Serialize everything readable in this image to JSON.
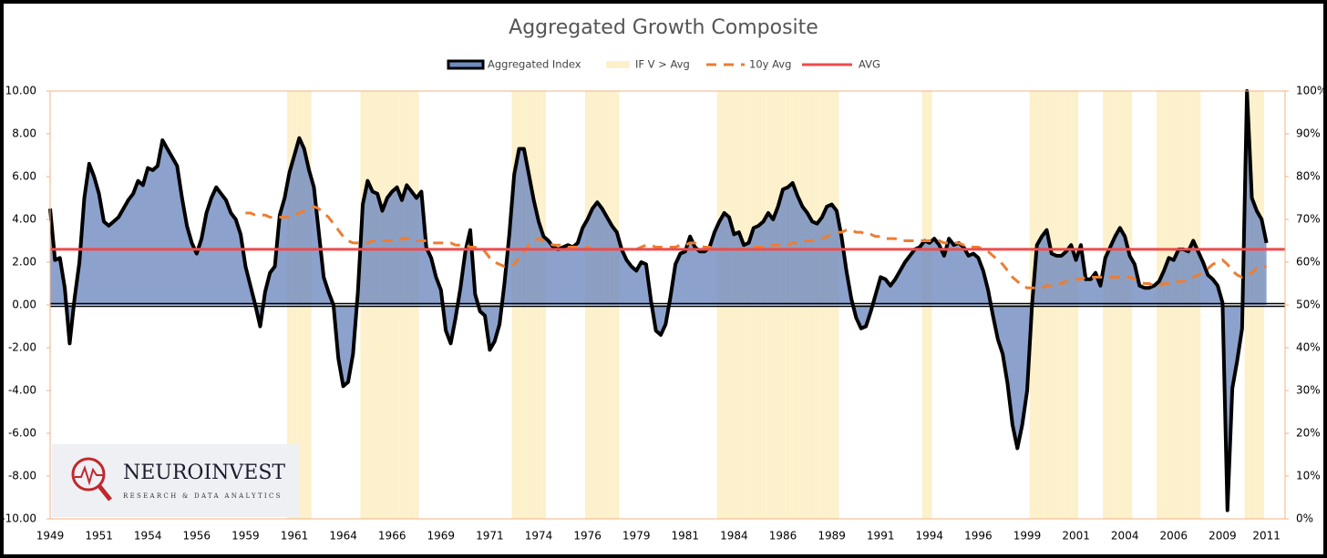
{
  "chart_data": {
    "type": "combo",
    "title": "Aggregated Growth Composite",
    "logo": {
      "name": "NEUROINVEST",
      "tagline": "RESEARCH & DATA ANALYTICS"
    },
    "categories": [
      "1949",
      null,
      null,
      null,
      null,
      null,
      null,
      null,
      null,
      null,
      "1951",
      null,
      null,
      null,
      null,
      null,
      null,
      null,
      null,
      null,
      "1954",
      null,
      null,
      null,
      null,
      null,
      null,
      null,
      null,
      null,
      "1956",
      null,
      null,
      null,
      null,
      null,
      null,
      null,
      null,
      null,
      "1959",
      null,
      null,
      null,
      null,
      null,
      null,
      null,
      null,
      null,
      "1961",
      null,
      null,
      null,
      null,
      null,
      null,
      null,
      null,
      null,
      "1964",
      null,
      null,
      null,
      null,
      null,
      null,
      null,
      null,
      null,
      "1966",
      null,
      null,
      null,
      null,
      null,
      null,
      null,
      null,
      null,
      "1969",
      null,
      null,
      null,
      null,
      null,
      null,
      null,
      null,
      null,
      "1971",
      null,
      null,
      null,
      null,
      null,
      null,
      null,
      null,
      null,
      "1974",
      null,
      null,
      null,
      null,
      null,
      null,
      null,
      null,
      null,
      "1976",
      null,
      null,
      null,
      null,
      null,
      null,
      null,
      null,
      null,
      "1979",
      null,
      null,
      null,
      null,
      null,
      null,
      null,
      null,
      null,
      "1981",
      null,
      null,
      null,
      null,
      null,
      null,
      null,
      null,
      null,
      "1984",
      null,
      null,
      null,
      null,
      null,
      null,
      null,
      null,
      null,
      "1986",
      null,
      null,
      null,
      null,
      null,
      null,
      null,
      null,
      null,
      "1989",
      null,
      null,
      null,
      null,
      null,
      null,
      null,
      null,
      null,
      "1991",
      null,
      null,
      null,
      null,
      null,
      null,
      null,
      null,
      null,
      "1994",
      null,
      null,
      null,
      null,
      null,
      null,
      null,
      null,
      null,
      "1996",
      null,
      null,
      null,
      null,
      null,
      null,
      null,
      null,
      null,
      "1999",
      null,
      null,
      null,
      null,
      null,
      null,
      null,
      null,
      null,
      "2001",
      null,
      null,
      null,
      null,
      null,
      null,
      null,
      null,
      null,
      "2004",
      null,
      null,
      null,
      null,
      null,
      null,
      null,
      null,
      null,
      "2006",
      null,
      null,
      null,
      null,
      null,
      null,
      null,
      null,
      null,
      "2009",
      null,
      null,
      null,
      null,
      null,
      null,
      null,
      null,
      "2011"
    ],
    "series": [
      {
        "name": "Aggregated Index",
        "type": "area",
        "color": "#000000",
        "fill": "#6f8bbf",
        "values": [
          4.5,
          2.1,
          2.2,
          0.8,
          -1.8,
          0.3,
          2.0,
          5.0,
          6.6,
          6.0,
          5.2,
          3.9,
          3.7,
          3.9,
          4.1,
          4.5,
          4.9,
          5.2,
          5.8,
          5.6,
          6.4,
          6.3,
          6.5,
          7.7,
          7.3,
          6.9,
          6.5,
          5.0,
          3.7,
          2.9,
          2.4,
          3.1,
          4.3,
          5.0,
          5.5,
          5.2,
          4.9,
          4.3,
          4.0,
          3.3,
          1.8,
          0.9,
          0.0,
          -1.0,
          0.6,
          1.5,
          1.8,
          4.2,
          5.0,
          6.2,
          7.0,
          7.8,
          7.3,
          6.3,
          5.5,
          3.4,
          1.3,
          0.6,
          0.0,
          -2.5,
          -3.8,
          -3.6,
          -2.3,
          0.6,
          4.7,
          5.8,
          5.3,
          5.2,
          4.4,
          5.0,
          5.3,
          5.5,
          4.9,
          5.6,
          5.3,
          5.0,
          5.3,
          2.7,
          2.2,
          1.3,
          0.7,
          -1.2,
          -1.8,
          -0.6,
          0.8,
          2.5,
          3.5,
          0.5,
          -0.3,
          -0.5,
          -2.1,
          -1.7,
          -0.9,
          1.0,
          3.3,
          6.1,
          7.3,
          7.3,
          6.1,
          4.9,
          3.9,
          3.2,
          3.0,
          2.7,
          2.6,
          2.7,
          2.8,
          2.7,
          2.9,
          3.6,
          4.0,
          4.5,
          4.8,
          4.5,
          4.1,
          3.7,
          3.4,
          2.6,
          2.1,
          1.8,
          1.6,
          2.0,
          1.9,
          0.2,
          -1.2,
          -1.4,
          -0.9,
          0.4,
          1.9,
          2.4,
          2.5,
          3.2,
          2.7,
          2.5,
          2.5,
          2.7,
          3.4,
          3.9,
          4.3,
          4.1,
          3.3,
          3.4,
          2.8,
          2.9,
          3.6,
          3.7,
          3.9,
          4.3,
          4.0,
          4.6,
          5.4,
          5.5,
          5.7,
          5.1,
          4.6,
          4.3,
          3.9,
          3.8,
          4.1,
          4.6,
          4.7,
          4.4,
          3.2,
          1.6,
          0.3,
          -0.6,
          -1.1,
          -1.0,
          -0.3,
          0.5,
          1.3,
          1.2,
          0.9,
          1.2,
          1.6,
          2.0,
          2.3,
          2.6,
          2.7,
          3.0,
          2.9,
          3.1,
          2.8,
          2.3,
          3.1,
          2.8,
          2.9,
          2.7,
          2.3,
          2.4,
          2.2,
          1.6,
          0.7,
          -0.5,
          -1.6,
          -2.3,
          -3.7,
          -5.6,
          -6.7,
          -5.6,
          -4.0,
          0.0,
          2.8,
          3.2,
          3.5,
          2.4,
          2.3,
          2.3,
          2.5,
          2.8,
          2.1,
          2.8,
          1.2,
          1.2,
          1.5,
          0.9,
          2.2,
          2.7,
          3.2,
          3.6,
          3.2,
          2.3,
          1.9,
          0.9,
          0.8,
          0.8,
          0.9,
          1.1,
          1.6,
          2.2,
          2.1,
          2.6,
          2.6,
          2.5,
          3.0,
          2.5,
          2.0,
          1.4,
          1.2,
          0.9,
          0.1,
          -9.6,
          -3.9,
          -2.6,
          -1.1,
          10.0,
          5.0,
          4.4,
          4.0,
          2.9
        ]
      },
      {
        "name": "IF V > Avg",
        "type": "column",
        "axis": "y2",
        "color": "#fdf1cc",
        "values": [
          0,
          0,
          0,
          0,
          0,
          0,
          0,
          0,
          0,
          0,
          0,
          0,
          0,
          0,
          0,
          0,
          0,
          0,
          0,
          0,
          0,
          0,
          0,
          0,
          0,
          0,
          0,
          0,
          0,
          0,
          0,
          0,
          0,
          0,
          0,
          0,
          0,
          0,
          0,
          0,
          0,
          0,
          0,
          0,
          0,
          0,
          0,
          0,
          0,
          100,
          100,
          100,
          100,
          100,
          0,
          0,
          0,
          0,
          0,
          0,
          0,
          0,
          0,
          0,
          100,
          100,
          100,
          100,
          100,
          100,
          100,
          100,
          100,
          100,
          100,
          100,
          0,
          0,
          0,
          0,
          0,
          0,
          0,
          0,
          0,
          0,
          0,
          0,
          0,
          0,
          0,
          0,
          0,
          0,
          0,
          100,
          100,
          100,
          100,
          100,
          100,
          100,
          0,
          0,
          0,
          0,
          0,
          0,
          0,
          0,
          100,
          100,
          100,
          100,
          100,
          100,
          100,
          0,
          0,
          0,
          0,
          0,
          0,
          0,
          0,
          0,
          0,
          0,
          0,
          0,
          0,
          0,
          0,
          0,
          0,
          0,
          0,
          100,
          100,
          100,
          100,
          100,
          100,
          100,
          100,
          100,
          100,
          100,
          100,
          100,
          100,
          100,
          100,
          100,
          100,
          100,
          100,
          100,
          100,
          100,
          100,
          100,
          0,
          0,
          0,
          0,
          0,
          0,
          0,
          0,
          0,
          0,
          0,
          0,
          0,
          0,
          0,
          0,
          0,
          100,
          100,
          0,
          0,
          0,
          0,
          0,
          0,
          0,
          0,
          0,
          0,
          0,
          0,
          0,
          0,
          0,
          0,
          0,
          0,
          0,
          0,
          100,
          100,
          100,
          100,
          100,
          100,
          100,
          100,
          100,
          100,
          0,
          0,
          0,
          0,
          0,
          100,
          100,
          100,
          100,
          100,
          100,
          0,
          0,
          0,
          0,
          0,
          100,
          100,
          100,
          100,
          100,
          100,
          100,
          100,
          100,
          0,
          0,
          0,
          0,
          0,
          0,
          0,
          0,
          0,
          100,
          100,
          100,
          100,
          0
        ]
      },
      {
        "name": "10y Avg",
        "type": "line",
        "dashed": true,
        "color": "#ed7d31",
        "values": [
          null,
          null,
          null,
          null,
          null,
          null,
          null,
          null,
          null,
          null,
          null,
          null,
          null,
          null,
          null,
          null,
          null,
          null,
          null,
          null,
          null,
          null,
          null,
          null,
          null,
          null,
          null,
          null,
          null,
          null,
          null,
          null,
          null,
          null,
          null,
          null,
          null,
          null,
          null,
          null,
          4.3,
          4.3,
          4.2,
          4.2,
          4.2,
          4.1,
          4.1,
          4.1,
          4.1,
          4.1,
          4.2,
          4.3,
          4.4,
          4.5,
          4.6,
          4.5,
          4.3,
          4.1,
          3.8,
          3.5,
          3.2,
          3.0,
          2.9,
          2.9,
          2.9,
          2.9,
          3.0,
          3.0,
          3.0,
          3.0,
          3.0,
          3.0,
          3.1,
          3.1,
          3.1,
          3.0,
          3.0,
          3.0,
          2.9,
          2.9,
          2.9,
          2.9,
          2.9,
          2.8,
          2.8,
          2.8,
          2.7,
          2.7,
          2.6,
          2.5,
          2.2,
          2.0,
          1.9,
          1.8,
          1.8,
          1.9,
          2.2,
          2.5,
          2.8,
          3.0,
          3.1,
          3.0,
          2.9,
          2.8,
          2.8,
          2.8,
          2.7,
          2.7,
          2.7,
          2.7,
          2.7,
          2.6,
          2.6,
          2.6,
          2.6,
          2.6,
          2.6,
          2.6,
          2.6,
          2.6,
          2.6,
          2.7,
          2.8,
          2.8,
          2.7,
          2.7,
          2.7,
          2.7,
          2.7,
          2.8,
          2.8,
          2.9,
          2.9,
          2.8,
          2.7,
          2.7,
          2.6,
          2.6,
          2.6,
          2.6,
          2.6,
          2.6,
          2.6,
          2.7,
          2.7,
          2.7,
          2.7,
          2.7,
          2.8,
          2.8,
          2.8,
          2.8,
          2.9,
          2.9,
          3.0,
          3.0,
          3.0,
          3.1,
          3.1,
          3.2,
          3.3,
          3.4,
          3.4,
          3.5,
          3.5,
          3.4,
          3.4,
          3.3,
          3.3,
          3.2,
          3.2,
          3.1,
          3.1,
          3.1,
          3.0,
          3.0,
          3.0,
          3.0,
          3.0,
          3.0,
          3.0,
          3.0,
          3.0,
          2.9,
          2.9,
          2.9,
          2.9,
          2.8,
          2.8,
          2.7,
          2.7,
          2.6,
          2.5,
          2.3,
          2.1,
          1.9,
          1.6,
          1.3,
          1.1,
          0.9,
          0.8,
          0.8,
          0.8,
          0.8,
          0.9,
          0.9,
          1.0,
          1.0,
          1.1,
          1.2,
          1.2,
          1.2,
          1.3,
          1.3,
          1.3,
          1.3,
          1.3,
          1.3,
          1.3,
          1.3,
          1.3,
          1.3,
          1.2,
          1.1,
          1.0,
          1.0,
          0.9,
          0.9,
          1.0,
          1.0,
          1.0,
          1.1,
          1.1,
          1.2,
          1.3,
          1.4,
          1.5,
          1.7,
          1.9,
          2.0,
          2.1,
          1.9,
          1.6,
          1.4,
          1.3,
          1.4,
          1.5,
          1.7,
          1.8,
          1.8
        ]
      },
      {
        "name": "AVG",
        "type": "hline",
        "color": "#ee4b4b",
        "value": 2.6
      }
    ],
    "ylim": [
      -10,
      10
    ],
    "yticks": [
      {
        "value": -10,
        "label": "-10.00"
      },
      {
        "value": -8,
        "label": "-8.00"
      },
      {
        "value": -6,
        "label": "-6.00"
      },
      {
        "value": -4,
        "label": "-4.00"
      },
      {
        "value": -2,
        "label": "-2.00"
      },
      {
        "value": 0,
        "label": "0.00"
      },
      {
        "value": 2,
        "label": "2.00"
      },
      {
        "value": 4,
        "label": "4.00"
      },
      {
        "value": 6,
        "label": "6.00"
      },
      {
        "value": 8,
        "label": "8.00"
      },
      {
        "value": 10,
        "label": "10.00"
      }
    ],
    "y2lim": [
      0,
      100
    ],
    "y2ticks": [
      {
        "value": 0,
        "label": "0%"
      },
      {
        "value": 10,
        "label": "10%"
      },
      {
        "value": 20,
        "label": "20%"
      },
      {
        "value": 30,
        "label": "30%"
      },
      {
        "value": 40,
        "label": "40%"
      },
      {
        "value": 50,
        "label": "50%"
      },
      {
        "value": 60,
        "label": "60%"
      },
      {
        "value": 70,
        "label": "70%"
      },
      {
        "value": 80,
        "label": "80%"
      },
      {
        "value": 90,
        "label": "90%"
      },
      {
        "value": 100,
        "label": "100%"
      }
    ],
    "legend": "top",
    "grid": false
  }
}
